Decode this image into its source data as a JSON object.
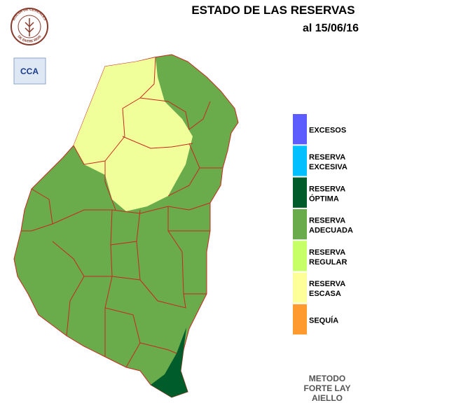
{
  "header": {
    "title": "ESTADO DE LAS RESERVAS",
    "date": "al 15/06/16"
  },
  "logos": {
    "bolsa": "BOLSA DE CEREALES",
    "bolsa_bottom": "DE ENTRE RIOS",
    "cca": "CCA"
  },
  "legend": {
    "items": [
      {
        "lines": [
          "EXCESOS"
        ],
        "color": "#5c5cff"
      },
      {
        "lines": [
          "RESERVA",
          "EXCESIVA"
        ],
        "color": "#00c0ff"
      },
      {
        "lines": [
          "RESERVA",
          "ÓPTIMA"
        ],
        "color": "#005c2a"
      },
      {
        "lines": [
          "RESERVA",
          "ADECUADA"
        ],
        "color": "#6aab4c"
      },
      {
        "lines": [
          "RESERVA",
          "REGULAR"
        ],
        "color": "#c6ff66"
      },
      {
        "lines": [
          "RESERVA",
          "ESCASA"
        ],
        "color": "#ffff99"
      },
      {
        "lines": [
          "SEQUÍA"
        ],
        "color": "#ff9a2e"
      }
    ]
  },
  "footer": {
    "lines": [
      "METODO",
      "FORTE LAY",
      "AIELLO"
    ]
  }
}
